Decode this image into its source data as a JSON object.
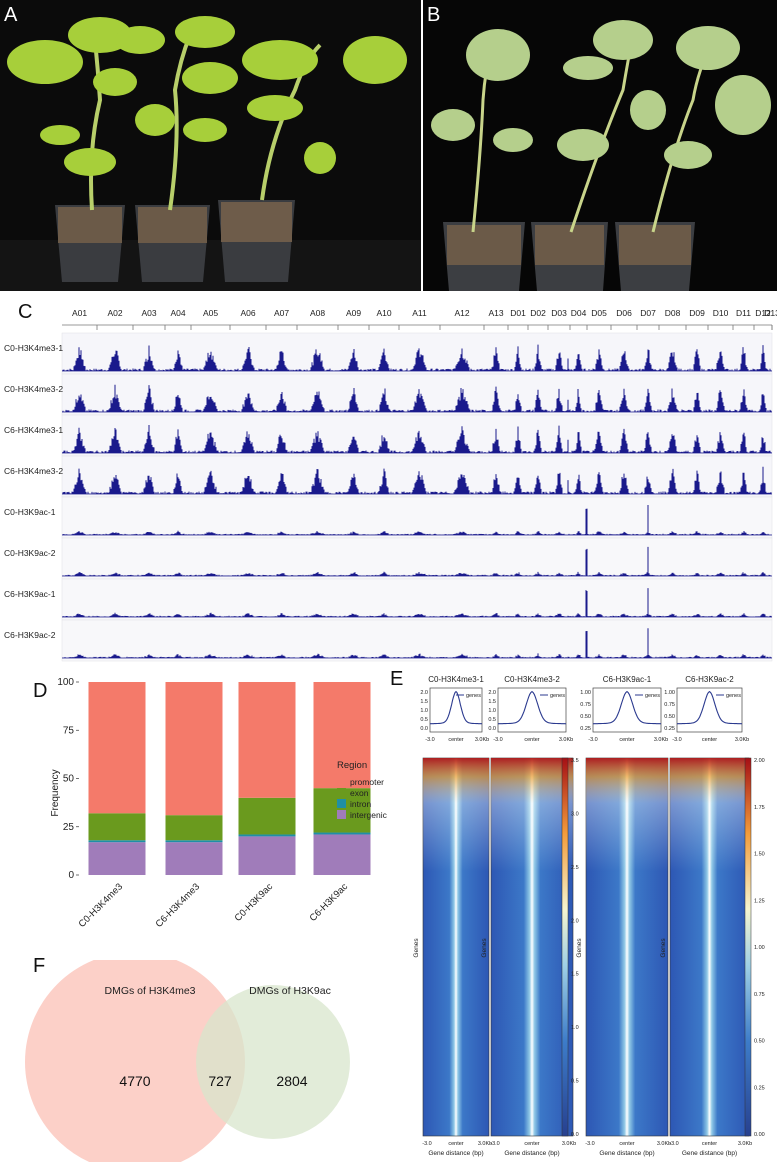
{
  "panels": {
    "a": "A",
    "b": "B",
    "c": "C",
    "d": "D",
    "e": "E",
    "f": "F"
  },
  "panel_c": {
    "chromosomes": [
      "A01",
      "A02",
      "A03",
      "A04",
      "A05",
      "A06",
      "A07",
      "A08",
      "A09",
      "A10",
      "A11",
      "A12",
      "A13",
      "D01",
      "D02",
      "D03",
      "D04",
      "D05",
      "D06",
      "D07",
      "D08",
      "D09",
      "D10",
      "D11",
      "D12",
      "D13"
    ],
    "tracks": [
      "C0-H3K4me3-1",
      "C0-H3K4me3-2",
      "C6-H3K4me3-1",
      "C6-H3K4me3-2",
      "C0-H3K9ac-1",
      "C0-H3K9ac-2",
      "C6-H3K9ac-1",
      "C6-H3K9ac-2"
    ],
    "track_color": "#1a1a8c"
  },
  "chart_data": [
    {
      "type": "bar",
      "panel": "D",
      "categories": [
        "C0-H3K4me3",
        "C6-H3K4me3",
        "C0-H3K9ac",
        "C6-H3K9ac"
      ],
      "series": [
        {
          "name": "intergenic",
          "color": "#a07cba",
          "values": [
            17,
            17,
            20,
            21
          ]
        },
        {
          "name": "intron",
          "color": "#1f8fa6",
          "values": [
            1,
            1,
            1,
            1
          ]
        },
        {
          "name": "exon",
          "color": "#6a9a1e",
          "values": [
            14,
            13,
            19,
            23
          ]
        },
        {
          "name": "promoter",
          "color": "#f47a6a",
          "values": [
            68,
            69,
            60,
            55
          ]
        }
      ],
      "ylabel": "Frequency",
      "yticks": [
        "0",
        "25",
        "50",
        "75",
        "100"
      ],
      "ylim": [
        0,
        100
      ],
      "legend_title": "Region",
      "legend_items": [
        "promoter",
        "exon",
        "intron",
        "intergenic"
      ]
    },
    {
      "type": "line",
      "panel": "E",
      "profiles": [
        {
          "title": "C0-H3K4me3-1",
          "legend": "genes",
          "yticks": [
            "0.0",
            "0.5",
            "1.0",
            "1.5",
            "2.0"
          ],
          "ymax": 2.0
        },
        {
          "title": "C0-H3K4me3-2",
          "legend": "genes",
          "yticks": [
            "0.0",
            "0.5",
            "1.0",
            "1.5",
            "2.0"
          ],
          "ymax": 2.0
        },
        {
          "title": "C6-H3K9ac-1",
          "legend": "genes",
          "yticks": [
            "0.25",
            "0.50",
            "0.75",
            "1.00"
          ],
          "ymax": 1.0
        },
        {
          "title": "C6-H3K9ac-2",
          "legend": "genes",
          "yticks": [
            "0.25",
            "0.50",
            "0.75",
            "1.00"
          ],
          "ymax": 1.0
        }
      ],
      "xticks": [
        "-3.0",
        "center",
        "3.0Kb"
      ],
      "heatmap_ylabel": "Genes",
      "heatmap_xlabel": "Gene distance (bp)",
      "colorbar1_ticks": [
        "3.5",
        "3.0",
        "2.5",
        "2.0",
        "1.5",
        "1.0",
        "0.5",
        "0.0"
      ],
      "colorbar2_ticks": [
        "2.00",
        "1.75",
        "1.50",
        "1.25",
        "1.00",
        "0.75",
        "0.50",
        "0.25",
        "0.00"
      ]
    }
  ],
  "panel_f": {
    "left_title": "DMGs of H3K4me3",
    "right_title": "DMGs of H3K9ac",
    "left_only": "4770",
    "overlap": "727",
    "right_only": "2804",
    "left_color": "#fcd0c8",
    "right_color": "#d8e6cc"
  }
}
